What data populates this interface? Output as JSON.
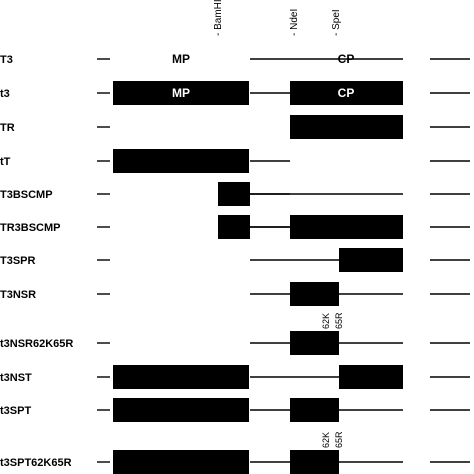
{
  "sites": [
    {
      "label": "- BamHI"
    },
    {
      "label": "- NdeI"
    },
    {
      "label": "- SpeI"
    }
  ],
  "rows": [
    {
      "label": "T3",
      "mp": "line",
      "cp": "line",
      "mp_text": "MP",
      "cp_text": "CP"
    },
    {
      "label": "t3",
      "mp": "box",
      "cp": "box",
      "mp_text": "MP",
      "cp_text": "CP"
    },
    {
      "label": "TR",
      "mp": "none",
      "cp": "box"
    },
    {
      "label": "tT",
      "mp": "box",
      "cp": "none"
    },
    {
      "label": "T3BSCMP",
      "mp": "small",
      "cp": "line"
    },
    {
      "label": "TR3BSCMP",
      "mp": "small",
      "cp": "box"
    },
    {
      "label": "T3SPR",
      "mp": "line",
      "cp": "right"
    },
    {
      "label": "T3NSR",
      "mp": "line",
      "cp": "left"
    },
    {
      "label": "t3NSR62K65R",
      "mp": "line",
      "cp": "left",
      "mutations": [
        "62K",
        "65R"
      ]
    },
    {
      "label": "t3NST",
      "mp": "box",
      "cp": "split"
    },
    {
      "label": "t3SPT",
      "mp": "box",
      "cp": "left"
    },
    {
      "label": "t3SPT62K65R",
      "mp": "box",
      "cp": "left",
      "mutations": [
        "62K",
        "65R"
      ]
    }
  ]
}
